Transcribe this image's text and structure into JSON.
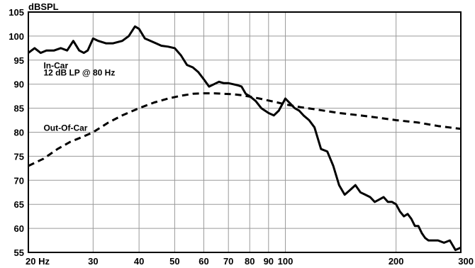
{
  "chart_data": {
    "type": "line",
    "title": "",
    "xlabel": "",
    "ylabel": "dBSPL",
    "xscale": "log",
    "xlim": [
      20,
      300
    ],
    "ylim": [
      55,
      105
    ],
    "grid": true,
    "legend": "none",
    "x_ticks": [
      20,
      30,
      40,
      50,
      60,
      70,
      80,
      90,
      100,
      200,
      300
    ],
    "x_tick_labels": [
      "20 Hz",
      "30",
      "40",
      "50",
      "60",
      "70",
      "80",
      "90",
      "100",
      "200",
      "300"
    ],
    "y_ticks": [
      55,
      60,
      65,
      70,
      75,
      80,
      85,
      90,
      95,
      100,
      105
    ],
    "y_tick_labels": [
      "55",
      "60",
      "65",
      "70",
      "75",
      "80",
      "85",
      "90",
      "95",
      "100",
      "105"
    ],
    "annotations": [
      {
        "text": "In-Car",
        "x": 22,
        "y": 93.3
      },
      {
        "text": "12 dB LP @ 80 Hz",
        "x": 22,
        "y": 91.8
      },
      {
        "text": "Out-Of-Car",
        "x": 22,
        "y": 80.3
      }
    ],
    "series": [
      {
        "name": "In-Car 12 dB LP @ 80 Hz",
        "style": "solid",
        "color": "#000000",
        "x": [
          20,
          20.8,
          21.6,
          22.4,
          23.5,
          24.5,
          25.5,
          26.5,
          27.5,
          28.3,
          29,
          30,
          31,
          32.5,
          34,
          36,
          37.5,
          39,
          40,
          41.5,
          43,
          44.5,
          46,
          48,
          50,
          52,
          54,
          56,
          58,
          60,
          62,
          64,
          66,
          68,
          70,
          72,
          74,
          76,
          78,
          80,
          83,
          86,
          88,
          90,
          93,
          96,
          100,
          103,
          106,
          109,
          112,
          116,
          120,
          125,
          130,
          135,
          140,
          145,
          150,
          155,
          160,
          165,
          170,
          175,
          180,
          185,
          190,
          195,
          200,
          205,
          210,
          215,
          220,
          225,
          230,
          235,
          240,
          245,
          250,
          260,
          270,
          280,
          290,
          300
        ],
        "y": [
          96.5,
          97.5,
          96.5,
          97,
          97,
          97.5,
          97,
          99,
          97,
          96.5,
          97,
          99.5,
          99,
          98.5,
          98.5,
          99,
          100,
          102,
          101.5,
          99.5,
          99,
          98.5,
          98,
          97.8,
          97.5,
          96,
          94,
          93.5,
          92.5,
          91,
          89.5,
          90,
          90.5,
          90.2,
          90.2,
          90,
          89.8,
          89.5,
          88,
          87.5,
          86.5,
          85,
          84.5,
          84,
          83.5,
          84.5,
          87,
          86,
          85,
          84.5,
          83.5,
          82.5,
          81,
          76.5,
          76,
          73,
          69,
          67,
          68,
          69,
          67.5,
          67,
          66.5,
          65.5,
          66,
          66.5,
          65.5,
          65.5,
          65,
          63.5,
          62.5,
          63,
          62,
          60.5,
          60.5,
          59,
          58,
          57.5,
          57.5,
          57.5,
          57,
          57.5,
          55.5,
          56
        ]
      },
      {
        "name": "Out-Of-Car",
        "style": "dashed",
        "color": "#000000",
        "x": [
          20,
          22,
          24,
          26,
          28,
          30,
          33,
          36,
          40,
          44,
          48,
          52,
          56,
          60,
          64,
          68,
          72,
          76,
          80,
          85,
          90,
          95,
          100,
          110,
          120,
          140,
          160,
          180,
          200,
          230,
          260,
          300
        ],
        "y": [
          73,
          74.5,
          76.5,
          78,
          79,
          80,
          82,
          83.5,
          85,
          86.2,
          87,
          87.6,
          88,
          88.1,
          88.1,
          88,
          87.9,
          87.7,
          87.4,
          87,
          86.6,
          86.2,
          85.8,
          85.2,
          84.8,
          84,
          83.5,
          83,
          82.5,
          82,
          81.3,
          80.7
        ]
      }
    ]
  }
}
